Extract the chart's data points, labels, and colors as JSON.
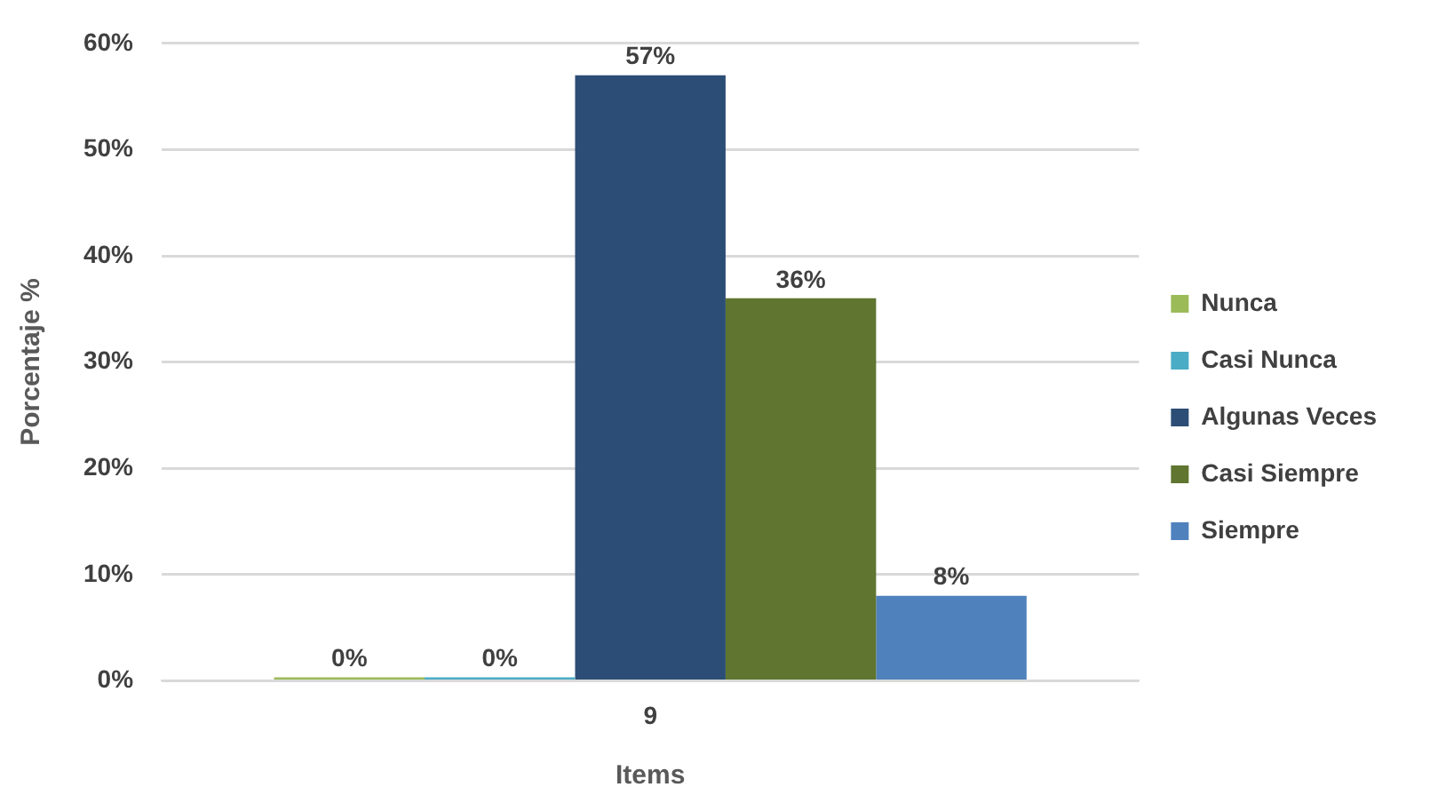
{
  "chart_data": {
    "type": "bar",
    "xlabel": "Items",
    "ylabel": "Porcentaje %",
    "categories": [
      "9"
    ],
    "series": [
      {
        "name": "Nunca",
        "color": "#9bbb59",
        "values": [
          0
        ],
        "value_labels": [
          "0%"
        ]
      },
      {
        "name": "Casi Nunca",
        "color": "#4bacc6",
        "values": [
          0
        ],
        "value_labels": [
          "0%"
        ]
      },
      {
        "name": "Algunas Veces",
        "color": "#2c4d75",
        "values": [
          57
        ],
        "value_labels": [
          "57%"
        ]
      },
      {
        "name": "Casi Siempre",
        "color": "#5f7530",
        "values": [
          36
        ],
        "value_labels": [
          "36%"
        ]
      },
      {
        "name": "Siempre",
        "color": "#4f81bd",
        "values": [
          8
        ],
        "value_labels": [
          "8%"
        ]
      }
    ],
    "ylim": [
      0,
      60
    ],
    "yticks": [
      {
        "value": 0,
        "label": "0%"
      },
      {
        "value": 10,
        "label": "10%"
      },
      {
        "value": 20,
        "label": "20%"
      },
      {
        "value": 30,
        "label": "30%"
      },
      {
        "value": 40,
        "label": "40%"
      },
      {
        "value": 50,
        "label": "50%"
      },
      {
        "value": 60,
        "label": "60%"
      }
    ],
    "grid": "y",
    "legend": "right"
  }
}
